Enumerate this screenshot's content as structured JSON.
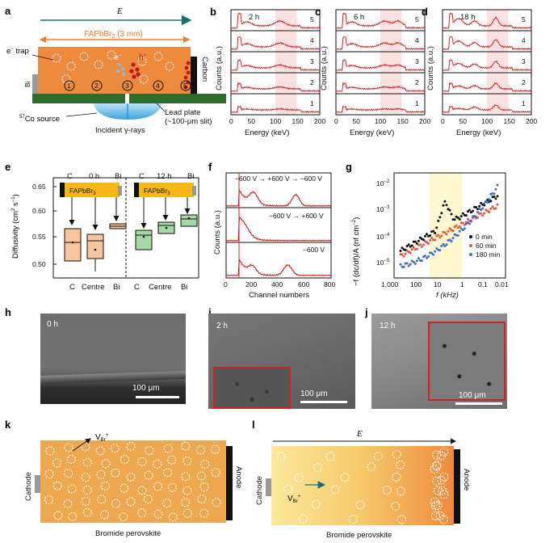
{
  "panels": {
    "a": {
      "label": "a",
      "field": "E",
      "crystal": "FAPbBr",
      "crystal_sub": "3",
      "crystal_size": "(3 mm)",
      "etrap": "e",
      "etrap_sup": "−",
      "etrap_word": "trap",
      "carbon": "Carbon",
      "bi": "Bi",
      "electron": "e",
      "electron_sup": "−",
      "hole": "h",
      "hole_sup": "+",
      "positions": [
        "1",
        "2",
        "3",
        "4",
        "5"
      ],
      "source_sup": "57",
      "source": "Co source",
      "lead_plate": "Lead plate",
      "slit": "(~100-μm slit)",
      "gamma": "Incident γ-rays"
    },
    "spectra": [
      {
        "label": "b",
        "time": "2 h"
      },
      {
        "label": "c",
        "time": "6 h"
      },
      {
        "label": "d",
        "time": "18 h"
      }
    ],
    "spectra_common": {
      "ylabel": "Counts (a.u.)",
      "xlabel": "Energy (keV)",
      "xticks": [
        "0",
        "50",
        "100",
        "150",
        "200"
      ],
      "rows": [
        "5",
        "4",
        "3",
        "2",
        "1"
      ]
    },
    "e": {
      "label": "e",
      "ylabel": "Diffusivity (cm",
      "ylabel_sup": "2",
      "ylabel_tail": " s",
      "ylabel_sup2": "−1",
      "ylabel_close": ")",
      "yticks": [
        "0.65",
        "0.60",
        "0.55",
        "0.50"
      ],
      "xticks": [
        "C",
        "Centre",
        "Bi",
        "C",
        "Centre",
        "Bi"
      ],
      "left_header": [
        "C",
        "0 h",
        "Bi"
      ],
      "right_header": [
        "C",
        "12 h",
        "Bi"
      ],
      "material": "FAPbBr",
      "material_sub": "3"
    },
    "f": {
      "label": "f",
      "ylabel": "Counts (a.u.)",
      "xlabel": "Channel numbers",
      "xticks": [
        "0",
        "200",
        "400",
        "600",
        "800"
      ],
      "traces": [
        "−600 V → +600 V → −600 V",
        "−600 V → +600 V",
        "−600 V"
      ]
    },
    "g": {
      "label": "g",
      "xlabel": "f (kHz)",
      "ylabel": "−f (dc/df)/A (nf cm",
      "ylabel_sup": "−2",
      "ylabel_close": ")",
      "xticks": [
        "1,000",
        "100",
        "10",
        "1",
        "0.1",
        "0.01"
      ],
      "yticks": [
        "10",
        "10",
        "10",
        "10"
      ],
      "yticks_sup": [
        "−2",
        "−3",
        "−4",
        "−5"
      ],
      "legend": [
        {
          "label": "0 min",
          "color": "#111111"
        },
        {
          "label": "60 min",
          "color": "#e8553a"
        },
        {
          "label": "180 min",
          "color": "#3a6fd8"
        }
      ]
    },
    "sem": [
      {
        "label": "h",
        "time": "0 h",
        "scale": "100 μm"
      },
      {
        "label": "i",
        "time": "2 h",
        "scale": "100 μm"
      },
      {
        "label": "j",
        "time": "12 h",
        "scale": "100 μm"
      }
    ],
    "k": {
      "label": "k",
      "vbr": "V",
      "vbr_sub": "Br",
      "vbr_sup": "+",
      "cathode": "Cathode",
      "anode": "Anode",
      "caption": "Bromide perovskite"
    },
    "l": {
      "label": "l",
      "field": "E",
      "vbr": "V",
      "vbr_sub": "Br",
      "vbr_sup": "+",
      "cathode": "Cathode",
      "anode": "Anode",
      "caption": "Bromide perovskite"
    }
  },
  "chart_data": [
    {
      "type": "line",
      "panel": "f",
      "xlabel": "Channel numbers",
      "ylabel": "Counts (a.u.)",
      "xlim": [
        0,
        800
      ],
      "series": [
        {
          "name": "−600 V → +600 V → −600 V",
          "peaks_channel": [
            210,
            530
          ]
        },
        {
          "name": "−600 V → +600 V",
          "peaks_channel": [
            130
          ]
        },
        {
          "name": "−600 V",
          "peaks_channel": [
            200,
            470
          ]
        }
      ]
    },
    {
      "type": "bar",
      "panel": "e",
      "ylabel": "Diffusivity (cm2 s−1)",
      "ylim": [
        0.48,
        0.67
      ],
      "categories": [
        "C 0h",
        "Centre 0h",
        "Bi 0h",
        "C 12h",
        "Centre 12h",
        "Bi 12h"
      ],
      "series": [
        {
          "name": "median",
          "values": [
            0.54,
            0.53,
            0.572,
            0.555,
            0.57,
            0.585
          ]
        }
      ]
    },
    {
      "type": "scatter",
      "panel": "g",
      "xlabel": "f (kHz)",
      "ylabel": "−f (dc/df)/A (nf cm−2)",
      "series": [
        {
          "name": "0 min"
        },
        {
          "name": "60 min"
        },
        {
          "name": "180 min"
        }
      ]
    }
  ]
}
